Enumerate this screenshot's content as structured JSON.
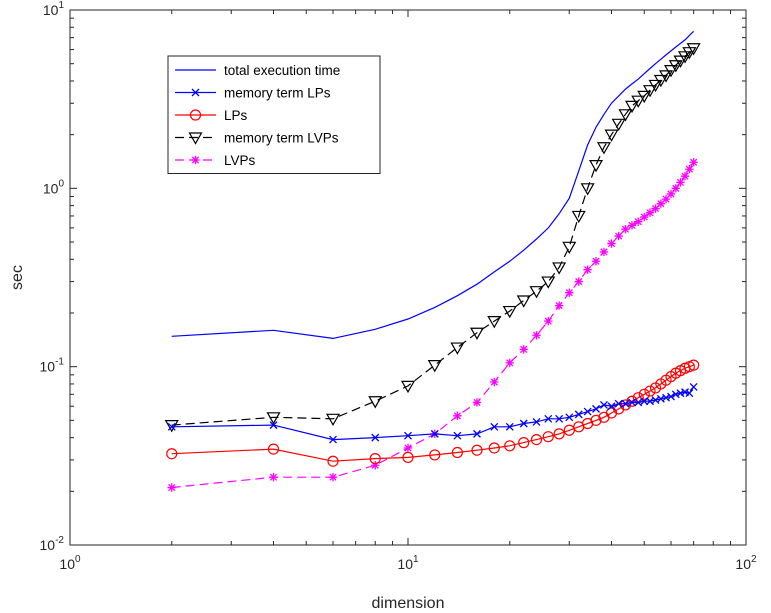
{
  "chart_data": {
    "type": "line",
    "xlabel": "dimension",
    "ylabel": "sec",
    "x_scale": "log",
    "y_scale": "log",
    "xlim": [
      1,
      100
    ],
    "ylim": [
      0.01,
      10
    ],
    "grid": false,
    "legend_position": "top-left",
    "x_ticks": [
      {
        "value": 1,
        "base": "10",
        "exp": "0"
      },
      {
        "value": 10,
        "base": "10",
        "exp": "1"
      },
      {
        "value": 100,
        "base": "10",
        "exp": "2"
      }
    ],
    "y_ticks": [
      {
        "value": 0.01,
        "base": "10",
        "exp": "-2"
      },
      {
        "value": 0.1,
        "base": "10",
        "exp": "-1"
      },
      {
        "value": 1,
        "base": "10",
        "exp": "0"
      },
      {
        "value": 10,
        "base": "10",
        "exp": "1"
      }
    ],
    "series": [
      {
        "name": "total execution time",
        "color": "#0000ff",
        "line_style": "solid",
        "marker": "none",
        "x": [
          2,
          4,
          6,
          8,
          10,
          12,
          14,
          16,
          18,
          20,
          22,
          24,
          26,
          28,
          30,
          32,
          34,
          36,
          38,
          40,
          42,
          44,
          46,
          48,
          50,
          52,
          54,
          56,
          58,
          60,
          62,
          64,
          66,
          68,
          70
        ],
        "y": [
          0.148,
          0.16,
          0.144,
          0.162,
          0.185,
          0.215,
          0.25,
          0.29,
          0.34,
          0.39,
          0.45,
          0.52,
          0.6,
          0.72,
          0.88,
          1.25,
          1.75,
          2.2,
          2.6,
          3.0,
          3.3,
          3.6,
          3.85,
          4.1,
          4.4,
          4.7,
          5.0,
          5.3,
          5.6,
          5.9,
          6.2,
          6.5,
          6.8,
          7.2,
          7.6
        ]
      },
      {
        "name": "memory term LPs",
        "color": "#0000ff",
        "line_style": "solid",
        "marker": "x",
        "x": [
          2,
          4,
          6,
          8,
          10,
          12,
          14,
          16,
          18,
          20,
          22,
          24,
          26,
          28,
          30,
          32,
          34,
          36,
          38,
          40,
          42,
          44,
          46,
          48,
          50,
          52,
          54,
          56,
          58,
          60,
          62,
          64,
          66,
          68,
          70
        ],
        "y": [
          0.046,
          0.047,
          0.039,
          0.04,
          0.041,
          0.042,
          0.041,
          0.042,
          0.046,
          0.046,
          0.048,
          0.049,
          0.051,
          0.051,
          0.052,
          0.054,
          0.056,
          0.058,
          0.061,
          0.06,
          0.062,
          0.062,
          0.063,
          0.063,
          0.064,
          0.064,
          0.065,
          0.066,
          0.067,
          0.068,
          0.07,
          0.071,
          0.072,
          0.071,
          0.077
        ]
      },
      {
        "name": "LPs",
        "color": "#ff0000",
        "line_style": "solid",
        "marker": "circle",
        "x": [
          2,
          4,
          6,
          8,
          10,
          12,
          14,
          16,
          18,
          20,
          22,
          24,
          26,
          28,
          30,
          32,
          34,
          36,
          38,
          40,
          42,
          44,
          46,
          48,
          50,
          52,
          54,
          56,
          58,
          60,
          62,
          64,
          66,
          68,
          70
        ],
        "y": [
          0.0325,
          0.0345,
          0.0295,
          0.0305,
          0.031,
          0.032,
          0.033,
          0.034,
          0.035,
          0.036,
          0.0375,
          0.039,
          0.0405,
          0.042,
          0.044,
          0.046,
          0.048,
          0.05,
          0.052,
          0.055,
          0.058,
          0.061,
          0.064,
          0.067,
          0.07,
          0.073,
          0.076,
          0.08,
          0.084,
          0.088,
          0.092,
          0.095,
          0.098,
          0.1,
          0.102
        ]
      },
      {
        "name": "memory term LVPs",
        "color": "#000000",
        "line_style": "dashed",
        "marker": "triangle-down",
        "x": [
          2,
          4,
          6,
          8,
          10,
          12,
          14,
          16,
          18,
          20,
          22,
          24,
          26,
          28,
          30,
          32,
          34,
          36,
          38,
          40,
          42,
          44,
          46,
          48,
          50,
          52,
          54,
          56,
          58,
          60,
          62,
          64,
          66,
          68,
          70
        ],
        "y": [
          0.047,
          0.052,
          0.051,
          0.064,
          0.078,
          0.102,
          0.128,
          0.155,
          0.18,
          0.205,
          0.235,
          0.265,
          0.3,
          0.36,
          0.47,
          0.7,
          1.0,
          1.35,
          1.7,
          2.0,
          2.3,
          2.6,
          2.9,
          3.1,
          3.3,
          3.55,
          3.8,
          4.05,
          4.3,
          4.6,
          4.9,
          5.2,
          5.5,
          5.8,
          6.1
        ]
      },
      {
        "name": "LVPs",
        "color": "#ff00ff",
        "line_style": "dashed",
        "marker": "asterisk",
        "x": [
          2,
          4,
          6,
          8,
          10,
          12,
          14,
          16,
          18,
          20,
          22,
          24,
          26,
          28,
          30,
          32,
          34,
          36,
          38,
          40,
          42,
          44,
          46,
          48,
          50,
          52,
          54,
          56,
          58,
          60,
          62,
          64,
          66,
          68,
          70
        ],
        "y": [
          0.021,
          0.024,
          0.024,
          0.028,
          0.035,
          0.042,
          0.053,
          0.063,
          0.082,
          0.105,
          0.125,
          0.15,
          0.18,
          0.22,
          0.26,
          0.3,
          0.35,
          0.39,
          0.44,
          0.49,
          0.54,
          0.59,
          0.62,
          0.65,
          0.69,
          0.73,
          0.77,
          0.82,
          0.87,
          0.93,
          1.0,
          1.08,
          1.17,
          1.28,
          1.4
        ]
      }
    ]
  }
}
